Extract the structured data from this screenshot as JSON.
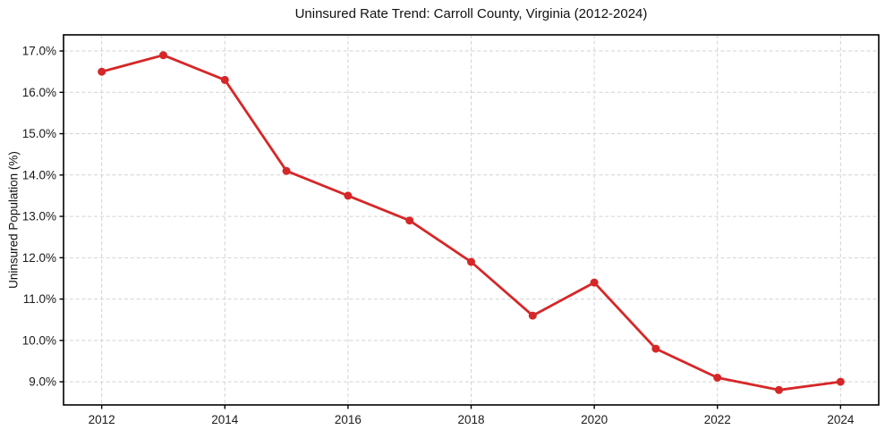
{
  "chart_data": {
    "type": "line",
    "title": "Uninsured Rate Trend: Carroll County, Virginia (2012-2024)",
    "xlabel": "",
    "ylabel": "Uninsured Population (%)",
    "x": [
      2012,
      2013,
      2014,
      2015,
      2016,
      2017,
      2018,
      2019,
      2020,
      2021,
      2022,
      2023,
      2024
    ],
    "series": [
      {
        "name": "Uninsured rate",
        "values": [
          16.5,
          16.9,
          16.3,
          14.1,
          13.5,
          12.9,
          11.9,
          10.6,
          11.4,
          9.8,
          9.1,
          8.8,
          9.0
        ]
      }
    ],
    "xlim": [
      2011.38,
      2024.62
    ],
    "ylim": [
      8.44,
      17.39
    ],
    "xticks": {
      "values": [
        2012,
        2014,
        2016,
        2018,
        2020,
        2022,
        2024
      ],
      "labels": [
        "2012",
        "2014",
        "2016",
        "2018",
        "2020",
        "2022",
        "2024"
      ]
    },
    "yticks": {
      "values": [
        9,
        10,
        11,
        12,
        13,
        14,
        15,
        16,
        17
      ],
      "labels": [
        "9.0%",
        "10.0%",
        "11.0%",
        "12.0%",
        "13.0%",
        "14.0%",
        "15.0%",
        "16.0%",
        "17.0%"
      ]
    },
    "grid": true,
    "legend": "none",
    "colors": {
      "line": "#d62728",
      "marker": "#d62728",
      "grid": "#d2d2d2",
      "axis": "#000000",
      "text": "#1a1a1a",
      "background": "#ffffff"
    }
  }
}
